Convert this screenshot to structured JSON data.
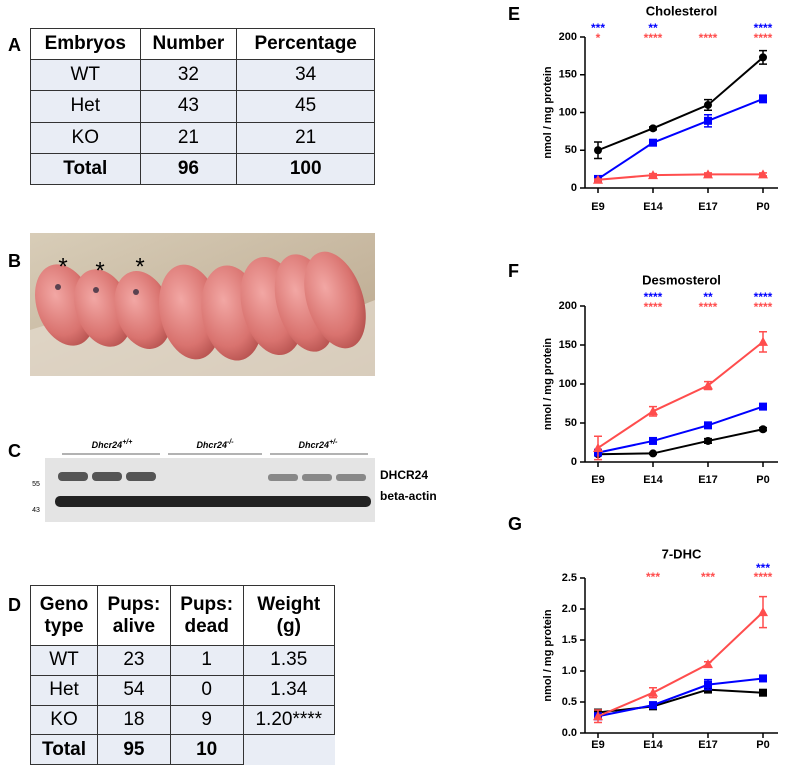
{
  "panel_labels": [
    "A",
    "B",
    "C",
    "D",
    "E",
    "F",
    "G"
  ],
  "table_a": {
    "header": [
      "Embryos",
      "Number",
      "Percentage"
    ],
    "rows": [
      [
        "WT",
        "32",
        "34"
      ],
      [
        "Het",
        "43",
        "45"
      ],
      [
        "KO",
        "21",
        "21"
      ]
    ],
    "total": [
      "Total",
      "96",
      "100"
    ]
  },
  "photo": {
    "markers": [
      "*",
      "*",
      "*"
    ]
  },
  "blot": {
    "groups": [
      {
        "gene": "Dhcr24",
        "genotype": "+/+"
      },
      {
        "gene": "Dhcr24",
        "genotype": "-/-"
      },
      {
        "gene": "Dhcr24",
        "genotype": "+/-"
      }
    ],
    "size_markers": [
      "55",
      "43"
    ],
    "bands": [
      "DHCR24",
      "beta-actin"
    ]
  },
  "table_d": {
    "header": [
      [
        "Geno",
        "type"
      ],
      [
        "Pups:",
        "alive"
      ],
      [
        "Pups:",
        "dead"
      ],
      [
        "Weight",
        "(g)"
      ]
    ],
    "rows": [
      [
        "WT",
        "23",
        "1",
        "1.35"
      ],
      [
        "Het",
        "54",
        "0",
        "1.34"
      ],
      [
        "KO",
        "18",
        "9",
        "1.20****"
      ]
    ],
    "total": [
      "Total",
      "95",
      "10"
    ]
  },
  "chart_data": [
    {
      "type": "line",
      "title": "Cholesterol",
      "y_label": "nmol / mg protein",
      "categories": [
        "E9",
        "E14",
        "E17",
        "P0"
      ],
      "ylim": [
        0,
        200
      ],
      "yticks": [
        0,
        50,
        100,
        150,
        200
      ],
      "series": [
        {
          "color": "#000000",
          "marker": "circle",
          "values": [
            50,
            79,
            110,
            173
          ],
          "errors": [
            11,
            2,
            7,
            9
          ]
        },
        {
          "color": "#0000ff",
          "marker": "square",
          "values": [
            12,
            60,
            89,
            118
          ],
          "errors": [
            2,
            3,
            8,
            5
          ]
        },
        {
          "color": "#ff4d4d",
          "marker": "triangle",
          "values": [
            11,
            17,
            18,
            18
          ],
          "errors": [
            1,
            2,
            2,
            2
          ]
        }
      ],
      "annotations": [
        {
          "color": "#0000ff",
          "labels": [
            "***",
            "**",
            null,
            "****"
          ]
        },
        {
          "color": "#ff4d4d",
          "labels": [
            "*",
            "****",
            "****",
            "****"
          ]
        }
      ]
    },
    {
      "type": "line",
      "title": "Desmosterol",
      "y_label": "nmol / mg protein",
      "categories": [
        "E9",
        "E14",
        "E17",
        "P0"
      ],
      "ylim": [
        0,
        200
      ],
      "yticks": [
        0,
        50,
        100,
        150,
        200
      ],
      "series": [
        {
          "color": "#000000",
          "marker": "circle",
          "values": [
            10,
            11,
            27,
            42
          ],
          "errors": [
            1,
            1,
            3,
            2
          ]
        },
        {
          "color": "#0000ff",
          "marker": "square",
          "values": [
            12,
            27,
            47,
            71
          ],
          "errors": [
            1,
            2,
            3,
            3
          ]
        },
        {
          "color": "#ff4d4d",
          "marker": "triangle",
          "values": [
            18,
            65,
            98,
            154
          ],
          "errors": [
            15,
            6,
            5,
            13
          ]
        }
      ],
      "annotations": [
        {
          "color": "#0000ff",
          "labels": [
            null,
            "****",
            "**",
            "****"
          ]
        },
        {
          "color": "#ff4d4d",
          "labels": [
            null,
            "****",
            "****",
            "****"
          ]
        }
      ]
    },
    {
      "type": "line",
      "title": "7-DHC",
      "y_label": "nmol / mg protein",
      "categories": [
        "E9",
        "E14",
        "E17",
        "P0"
      ],
      "ylim": [
        0,
        2.5
      ],
      "yticks": [
        {
          "value": 0,
          "label": "0.0"
        },
        0.5,
        {
          "value": 1,
          "label": "1.0"
        },
        1.5,
        {
          "value": 2,
          "label": "2.0"
        },
        2.5
      ],
      "series": [
        {
          "color": "#000000",
          "marker": "square",
          "values": [
            0.33,
            0.43,
            0.7,
            0.65
          ],
          "errors": [
            0.03,
            0.02,
            0.04,
            0.02
          ]
        },
        {
          "color": "#0000ff",
          "marker": "square",
          "values": [
            0.27,
            0.45,
            0.78,
            0.88
          ],
          "errors": [
            0.05,
            0.03,
            0.08,
            0.04
          ]
        },
        {
          "color": "#ff4d4d",
          "marker": "triangle",
          "values": [
            0.27,
            0.65,
            1.11,
            1.95
          ],
          "errors": [
            0.1,
            0.08,
            0.04,
            0.25
          ]
        }
      ],
      "annotations": [
        {
          "color": "#0000ff",
          "labels": [
            null,
            null,
            null,
            "***"
          ]
        },
        {
          "color": "#ff4d4d",
          "labels": [
            null,
            "***",
            "***",
            "****"
          ]
        }
      ]
    }
  ]
}
